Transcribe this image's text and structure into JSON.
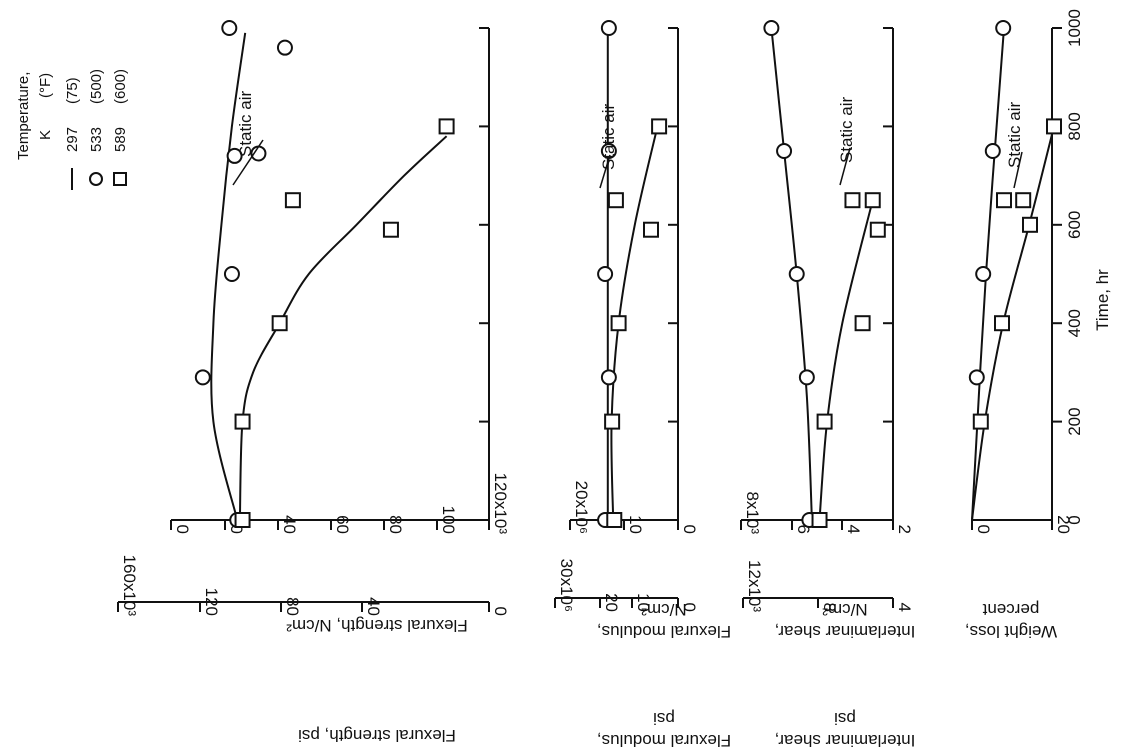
{
  "legend": {
    "title_line1": "Temperature,",
    "title_k": "K",
    "title_f": "(°F)",
    "entries": [
      {
        "k": "297",
        "f": "(75)",
        "marker": "line"
      },
      {
        "k": "533",
        "f": "(500)",
        "marker": "circle"
      },
      {
        "k": "589",
        "f": "(600)",
        "marker": "square"
      }
    ]
  },
  "labels": {
    "time_axis": "Time, hr",
    "strength_si": "Flexural strength, N/cm²",
    "strength_psi": "Flexural strength, psi",
    "modulus_si_1": "Flexural modulus,",
    "modulus_si_2": "N/cm²",
    "modulus_psi_1": "Flexural modulus,",
    "modulus_psi_2": "psi",
    "shear_si_1": "Interlaminar shear,",
    "shear_si_2": "N/cm²",
    "shear_psi_1": "Interlaminar shear,",
    "shear_psi_2": "psi",
    "weight_1": "Weight loss,",
    "weight_2": "percent",
    "static_air": "Static air"
  },
  "chart_data": [
    {
      "type": "line",
      "panel": "strength",
      "xlabel": "Time, hr",
      "ylabel": "Flexural strength, N/cm²",
      "secondary_ylabel": "Flexural strength, psi",
      "ylim": [
        0,
        120
      ],
      "y_unit": "x10³",
      "xlim": [
        0,
        1000
      ],
      "x_ticks": [
        0,
        200,
        400,
        600,
        800,
        1000
      ],
      "y_ticks": [
        "120x10³",
        "100",
        "80",
        "60",
        "40",
        "20",
        "0"
      ],
      "secondary_y_ticks": [
        "160x10³",
        "120",
        "80",
        "40",
        "0"
      ],
      "series": [
        {
          "name": "533 K (500 °F)",
          "marker": "circle",
          "points": [
            [
              0,
              95
            ],
            [
              290,
              108
            ],
            [
              500,
              97
            ],
            [
              740,
              96
            ],
            [
              745,
              87
            ],
            [
              1000,
              98
            ],
            [
              960,
              77
            ]
          ]
        },
        {
          "name": "589 K (600 °F)",
          "marker": "square",
          "points": [
            [
              0,
              93
            ],
            [
              200,
              93
            ],
            [
              400,
              79
            ],
            [
              590,
              37
            ],
            [
              650,
              74
            ],
            [
              800,
              16
            ]
          ]
        }
      ],
      "curves": [
        {
          "series": "533 K (500 °F)",
          "points": [
            [
              0,
              95
            ],
            [
              200,
              104
            ],
            [
              400,
              104
            ],
            [
              600,
              101
            ],
            [
              800,
              97
            ],
            [
              990,
              92
            ]
          ]
        },
        {
          "series": "589 K (600 °F)",
          "points": [
            [
              0,
              94
            ],
            [
              200,
              93
            ],
            [
              300,
              89
            ],
            [
              400,
              79
            ],
            [
              500,
              68
            ],
            [
              600,
              50
            ],
            [
              700,
              32
            ],
            [
              780,
              16
            ]
          ]
        }
      ],
      "annotation": "Static air"
    },
    {
      "type": "line",
      "panel": "modulus",
      "ylabel": "Flexural modulus, N/cm²",
      "secondary_ylabel": "Flexural modulus, psi",
      "ylim": [
        0,
        20
      ],
      "y_unit": "x10⁶",
      "y_ticks": [
        "20x10⁶",
        "10",
        "0"
      ],
      "secondary_y_ticks": [
        "30x10⁶",
        "20",
        "10",
        "0"
      ],
      "series": [
        {
          "name": "533 K (500 °F)",
          "marker": "circle",
          "points": [
            [
              0,
              13.5
            ],
            [
              290,
              12.8
            ],
            [
              500,
              13.5
            ],
            [
              750,
              12.8
            ],
            [
              1000,
              12.8
            ]
          ]
        },
        {
          "name": "589 K (600 °F)",
          "marker": "square",
          "points": [
            [
              0,
              11.8
            ],
            [
              200,
              12.2
            ],
            [
              400,
              11.0
            ],
            [
              590,
              5.0
            ],
            [
              650,
              11.5
            ],
            [
              800,
              3.5
            ]
          ]
        }
      ],
      "curves": [
        {
          "series": "533 K (500 °F)",
          "points": [
            [
              0,
              13.0
            ],
            [
              500,
              13.0
            ],
            [
              1000,
              13.0
            ]
          ]
        },
        {
          "series": "589 K (600 °F)",
          "points": [
            [
              0,
              12.0
            ],
            [
              200,
              12.3
            ],
            [
              400,
              11.0
            ],
            [
              600,
              8.0
            ],
            [
              800,
              3.8
            ]
          ]
        }
      ],
      "annotation": "Static air"
    },
    {
      "type": "line",
      "panel": "shear",
      "ylabel": "Interlaminar shear, N/cm²",
      "secondary_ylabel": "Interlaminar shear, psi",
      "ylim": [
        2,
        8
      ],
      "y_unit": "x10³",
      "y_ticks": [
        "8x10³",
        "6",
        "4",
        "2"
      ],
      "secondary_y_ticks": [
        "12x10³",
        "8",
        "4"
      ],
      "series": [
        {
          "name": "533 K (500 °F)",
          "marker": "circle",
          "points": [
            [
              0,
              5.3
            ],
            [
              290,
              5.4
            ],
            [
              500,
              5.8
            ],
            [
              750,
              6.3
            ],
            [
              1000,
              6.8
            ]
          ]
        },
        {
          "name": "589 K (600 °F)",
          "marker": "square",
          "points": [
            [
              0,
              4.9
            ],
            [
              200,
              4.7
            ],
            [
              400,
              3.2
            ],
            [
              590,
              2.6
            ],
            [
              650,
              2.8
            ],
            [
              650,
              3.6
            ]
          ]
        }
      ],
      "curves": [
        {
          "series": "533 K (500 °F)",
          "points": [
            [
              0,
              5.2
            ],
            [
              250,
              5.4
            ],
            [
              500,
              5.8
            ],
            [
              750,
              6.3
            ],
            [
              1000,
              6.8
            ]
          ]
        },
        {
          "series": "589 K (600 °F)",
          "points": [
            [
              0,
              4.9
            ],
            [
              200,
              4.6
            ],
            [
              400,
              4.0
            ],
            [
              650,
              2.8
            ]
          ]
        }
      ],
      "annotation": "Static air"
    },
    {
      "type": "line",
      "panel": "weight",
      "ylabel": "Weight loss, percent",
      "ylim": [
        0,
        20
      ],
      "y_ticks": [
        "20",
        "0"
      ],
      "series": [
        {
          "name": "533 K (500 °F)",
          "marker": "circle",
          "points": [
            [
              290,
              1.2
            ],
            [
              500,
              2.8
            ],
            [
              750,
              5.2
            ],
            [
              1000,
              7.8
            ]
          ]
        },
        {
          "name": "589 K (600 °F)",
          "marker": "square",
          "points": [
            [
              200,
              2.2
            ],
            [
              400,
              7.5
            ],
            [
              600,
              14.5
            ],
            [
              650,
              8.0
            ],
            [
              650,
              12.8
            ],
            [
              800,
              20.5
            ]
          ]
        }
      ],
      "curves": [
        {
          "series": "533 K (500 °F)",
          "points": [
            [
              0,
              0
            ],
            [
              500,
              3.5
            ],
            [
              1000,
              8.0
            ]
          ]
        },
        {
          "series": "589 K (600 °F)",
          "points": [
            [
              0,
              0
            ],
            [
              200,
              3.2
            ],
            [
              400,
              7.8
            ],
            [
              600,
              14.3
            ],
            [
              800,
              20.5
            ]
          ]
        }
      ],
      "annotation": "Static air"
    }
  ]
}
